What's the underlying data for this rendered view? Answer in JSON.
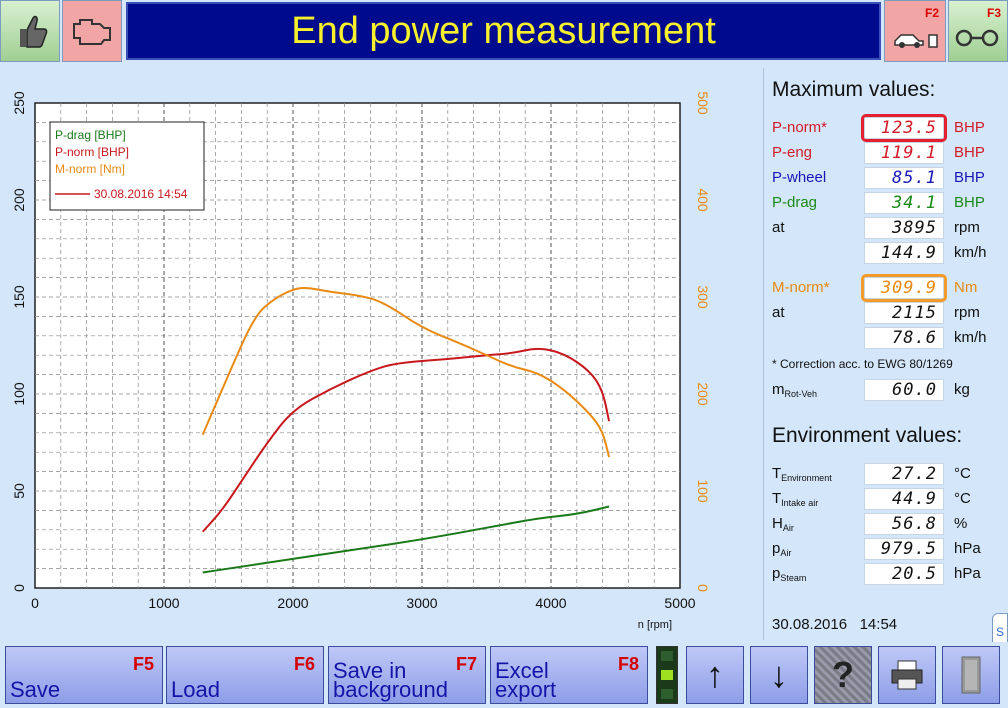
{
  "header": {
    "title": "End power measurement",
    "f2_label": "F2",
    "f3_label": "F3"
  },
  "max": {
    "heading": "Maximum values:",
    "rows": [
      {
        "label": "P-norm*",
        "value": "123.5",
        "unit": "BHP"
      },
      {
        "label": "P-eng",
        "value": "119.1",
        "unit": "BHP"
      },
      {
        "label": "P-wheel",
        "value": "85.1",
        "unit": "BHP"
      },
      {
        "label": "P-drag",
        "value": "34.1",
        "unit": "BHP"
      },
      {
        "label": "at",
        "value": "3895",
        "unit": "rpm"
      },
      {
        "label": "",
        "value": "144.9",
        "unit": "km/h"
      },
      {
        "label": "M-norm*",
        "value": "309.9",
        "unit": "Nm"
      },
      {
        "label": "at",
        "value": "2115",
        "unit": "rpm"
      },
      {
        "label": "",
        "value": "78.6",
        "unit": "km/h"
      }
    ],
    "note": "* Correction acc. to EWG 80/1269",
    "mrot": {
      "label": "m",
      "sub": "Rot-Veh",
      "value": "60.0",
      "unit": "kg"
    }
  },
  "env": {
    "heading": "Environment values:",
    "rows": [
      {
        "label": "T",
        "sub": "Environment",
        "value": "27.2",
        "unit": "°C"
      },
      {
        "label": "T",
        "sub": "Intake air",
        "value": "44.9",
        "unit": "°C"
      },
      {
        "label": "H",
        "sub": "Air",
        "value": "56.8",
        "unit": "%"
      },
      {
        "label": "p",
        "sub": "Air",
        "value": "979.5",
        "unit": "hPa"
      },
      {
        "label": "p",
        "sub": "Steam",
        "value": "20.5",
        "unit": "hPa"
      }
    ]
  },
  "timestamp": {
    "date": "30.08.2016",
    "time": "14:54"
  },
  "bottom": {
    "save": {
      "label": "Save",
      "key": "F5"
    },
    "load": {
      "label": "Load",
      "key": "F6"
    },
    "save_bg": {
      "label1": "Save in",
      "label2": "background",
      "key": "F7"
    },
    "excel": {
      "label1": "Excel",
      "label2": "export",
      "key": "F8"
    },
    "up_icon": "↑",
    "down_icon": "↓",
    "help_icon": "?"
  },
  "colors": {
    "p_drag": "#1a7a1a",
    "p_norm": "#c8181e",
    "m_norm": "#e98a12",
    "title_bg": "#000a8c",
    "title_fg": "#f7f02a"
  },
  "chart_data": {
    "type": "line",
    "xlabel": "n [rpm]",
    "xlim": [
      0,
      5000
    ],
    "ylim_left": [
      0,
      250
    ],
    "ylim_right": [
      0,
      500
    ],
    "x_ticks": [
      "0",
      "1000",
      "2000",
      "3000",
      "4000",
      "5000"
    ],
    "y_ticks_left": [
      "0",
      "50",
      "100",
      "150",
      "200",
      "250"
    ],
    "y_ticks_right": [
      "0",
      "100",
      "200",
      "300",
      "400",
      "500"
    ],
    "legend": {
      "placement": "top-left",
      "entries": [
        "P-drag [BHP]",
        "P-norm [BHP]",
        "M-norm [Nm]"
      ],
      "run_label": "30.08.2016 14:54"
    },
    "grid": true,
    "series": [
      {
        "name": "P-drag [BHP]",
        "axis": "left",
        "x": [
          1300,
          1600,
          2000,
          2500,
          3000,
          3500,
          3900,
          4200,
          4450
        ],
        "y": [
          8,
          11,
          15,
          20,
          25,
          31,
          36,
          38,
          42
        ]
      },
      {
        "name": "P-norm [BHP]",
        "axis": "left",
        "x": [
          1300,
          1450,
          1600,
          1800,
          2000,
          2300,
          2600,
          2800,
          3200,
          3500,
          3700,
          3900,
          4100,
          4300,
          4400,
          4450
        ],
        "y": [
          29,
          40,
          55,
          75,
          92,
          103,
          112,
          116,
          118,
          120,
          121,
          124,
          121,
          112,
          102,
          86
        ]
      },
      {
        "name": "M-norm [Nm]",
        "axis": "right",
        "x": [
          1300,
          1500,
          1700,
          1850,
          2000,
          2100,
          2300,
          2500,
          2700,
          3000,
          3300,
          3500,
          3700,
          3900,
          4100,
          4300,
          4400,
          4450
        ],
        "y": [
          158,
          220,
          280,
          298,
          308,
          310,
          305,
          302,
          295,
          268,
          252,
          240,
          228,
          222,
          205,
          180,
          162,
          135
        ]
      }
    ]
  }
}
